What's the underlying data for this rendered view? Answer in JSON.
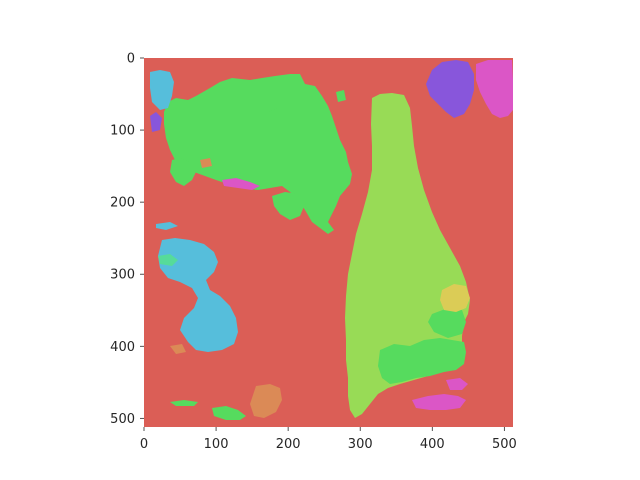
{
  "chart_data": {
    "type": "heatmap",
    "title": "",
    "xlabel": "",
    "ylabel": "",
    "xlim": [
      0,
      512
    ],
    "ylim": [
      512,
      0
    ],
    "grid": false,
    "x_ticks": [
      0,
      100,
      200,
      300,
      400,
      500
    ],
    "y_ticks": [
      0,
      100,
      200,
      300,
      400,
      500
    ],
    "background_color": "#db5e56",
    "colors": {
      "bright_green": "#56db5e",
      "lime_green": "#98db56",
      "cyan": "#56bedb",
      "purple": "#8856db",
      "magenta": "#db56c6",
      "yellow": "#dbcc56",
      "orange": "#db8a56",
      "teal_green": "#56db9a"
    }
  }
}
